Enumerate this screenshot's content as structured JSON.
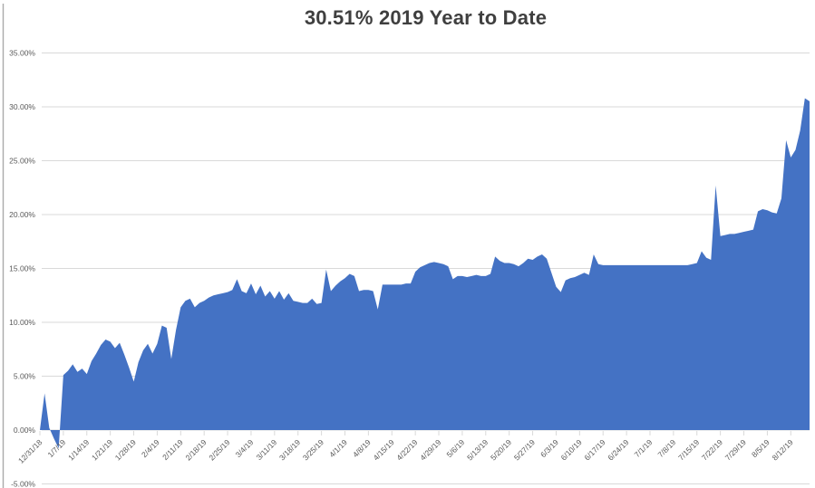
{
  "chart_data": {
    "type": "area",
    "title": "30.51% 2019 Year to Date",
    "xlabel": "",
    "ylabel": "",
    "legend": "none",
    "grid": true,
    "ylim": [
      -5,
      35
    ],
    "y_tick_step": 5,
    "y_tick_labels": [
      "35.00%",
      "30.00%",
      "25.00%",
      "20.00%",
      "15.00%",
      "10.00%",
      "5.00%",
      "0.00%",
      "-5.00%"
    ],
    "categories": [
      "12/31/18",
      "1/7/19",
      "1/14/19",
      "1/21/19",
      "1/28/19",
      "2/4/19",
      "2/11/19",
      "2/18/19",
      "2/25/19",
      "3/4/19",
      "3/11/19",
      "3/18/19",
      "3/25/19",
      "4/1/19",
      "4/8/19",
      "4/15/19",
      "4/22/19",
      "4/29/19",
      "5/6/19",
      "5/13/19",
      "5/20/19",
      "5/27/19",
      "6/3/19",
      "6/10/19",
      "6/17/19",
      "6/24/19",
      "7/1/19",
      "7/8/19",
      "7/15/19",
      "7/22/19",
      "7/29/19",
      "8/5/19",
      "8/12/19"
    ],
    "ticks_every": 5,
    "values": [
      0.0,
      3.4,
      0.2,
      -0.8,
      -1.7,
      5.1,
      5.5,
      6.1,
      5.4,
      5.7,
      5.2,
      6.4,
      7.1,
      7.9,
      8.4,
      8.2,
      7.6,
      8.1,
      7.0,
      5.8,
      4.5,
      6.3,
      7.4,
      8.0,
      7.1,
      8.0,
      9.7,
      9.5,
      6.6,
      9.3,
      11.4,
      12.0,
      12.2,
      11.4,
      11.8,
      12.0,
      12.3,
      12.5,
      12.6,
      12.7,
      12.8,
      13.0,
      14.0,
      12.9,
      12.7,
      13.6,
      12.6,
      13.4,
      12.4,
      12.9,
      12.2,
      12.9,
      12.1,
      12.7,
      12.0,
      11.9,
      11.8,
      11.8,
      12.2,
      11.7,
      11.8,
      14.9,
      12.9,
      13.4,
      13.8,
      14.1,
      14.5,
      14.3,
      12.9,
      13.0,
      13.0,
      12.9,
      11.2,
      13.5,
      13.5,
      13.5,
      13.5,
      13.5,
      13.6,
      13.6,
      14.7,
      15.1,
      15.3,
      15.5,
      15.6,
      15.5,
      15.4,
      15.2,
      14.0,
      14.3,
      14.3,
      14.2,
      14.3,
      14.4,
      14.3,
      14.3,
      14.5,
      16.1,
      15.7,
      15.5,
      15.5,
      15.4,
      15.2,
      15.5,
      15.9,
      15.8,
      16.1,
      16.3,
      15.9,
      14.6,
      13.3,
      12.8,
      13.9,
      14.1,
      14.2,
      14.4,
      14.6,
      14.4,
      16.3,
      15.4,
      15.3,
      15.3,
      15.3,
      15.3,
      15.3,
      15.3,
      15.3,
      15.3,
      15.3,
      15.3,
      15.3,
      15.3,
      15.3,
      15.3,
      15.3,
      15.3,
      15.3,
      15.3,
      15.3,
      15.4,
      15.5,
      16.6,
      16.0,
      15.8,
      22.7,
      18.0,
      18.1,
      18.2,
      18.2,
      18.3,
      18.4,
      18.5,
      18.6,
      20.3,
      20.5,
      20.4,
      20.2,
      20.1,
      21.5,
      26.9,
      25.3,
      26.0,
      27.8,
      30.8,
      30.51
    ],
    "colors": {
      "series_fill": "#4472C4",
      "gridline": "#D9D9D9",
      "axis_label": "#595959",
      "title": "#3F3F3F",
      "left_border": "#ABABAB",
      "background": "#FFFFFF"
    }
  }
}
